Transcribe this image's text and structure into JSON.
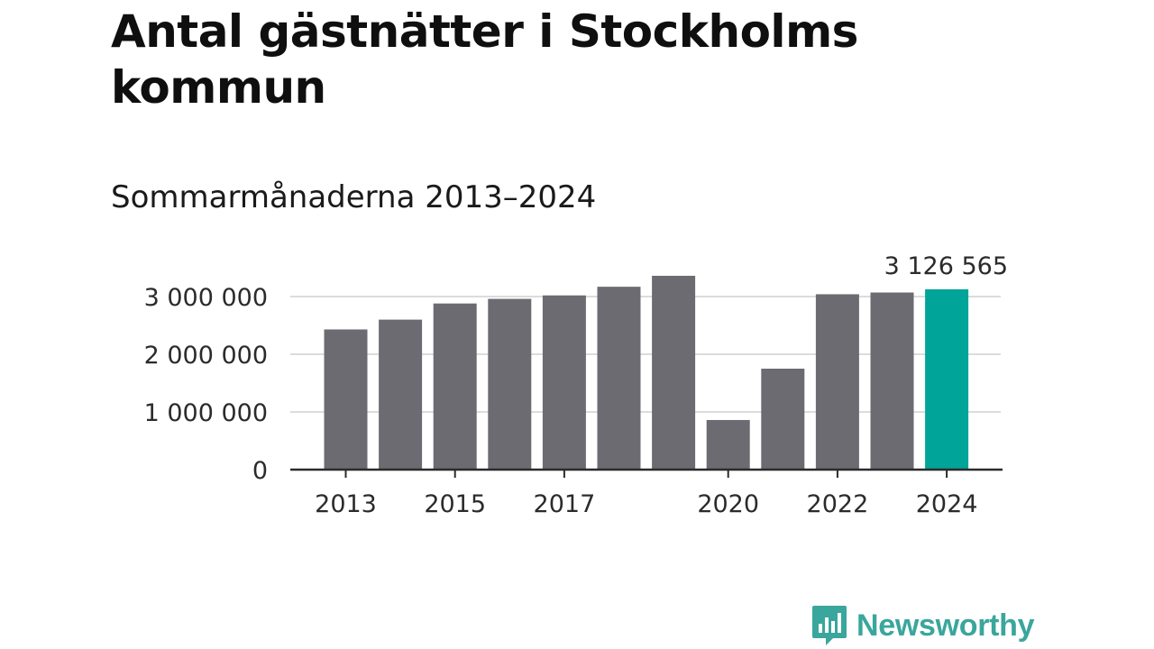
{
  "title": "Antal gästnätter i Stockholms kommun",
  "subtitle": "Sommarmånaderna 2013–2024",
  "brand": {
    "name": "Newsworthy",
    "icon": "newsworthy-logo-icon",
    "color": "#3aa69c"
  },
  "colors": {
    "bar": "#6c6b72",
    "highlight": "#00a499",
    "grid": "#dcdcdc",
    "axis": "#2b2b2b"
  },
  "chart_data": {
    "type": "bar",
    "categories": [
      "2013",
      "2014",
      "2015",
      "2016",
      "2017",
      "2018",
      "2019",
      "2020",
      "2021",
      "2022",
      "2023",
      "2024"
    ],
    "values": [
      2430000,
      2600000,
      2880000,
      2960000,
      3020000,
      3170000,
      3360000,
      860000,
      1750000,
      3040000,
      3070000,
      3126565
    ],
    "highlight": "2024",
    "value_labels": [
      {
        "category": "2024",
        "text": "3 126 565"
      }
    ],
    "x_tick_labels": [
      "2013",
      "2015",
      "2017",
      "2020",
      "2022",
      "2024"
    ],
    "y_ticks": [
      {
        "value": 0,
        "label": "0"
      },
      {
        "value": 1000000,
        "label": "1 000 000"
      },
      {
        "value": 2000000,
        "label": "2 000 000"
      },
      {
        "value": 3000000,
        "label": "3 000 000"
      }
    ],
    "ylim": [
      0,
      3500000
    ],
    "grid": true,
    "xlabel": "",
    "ylabel": ""
  }
}
